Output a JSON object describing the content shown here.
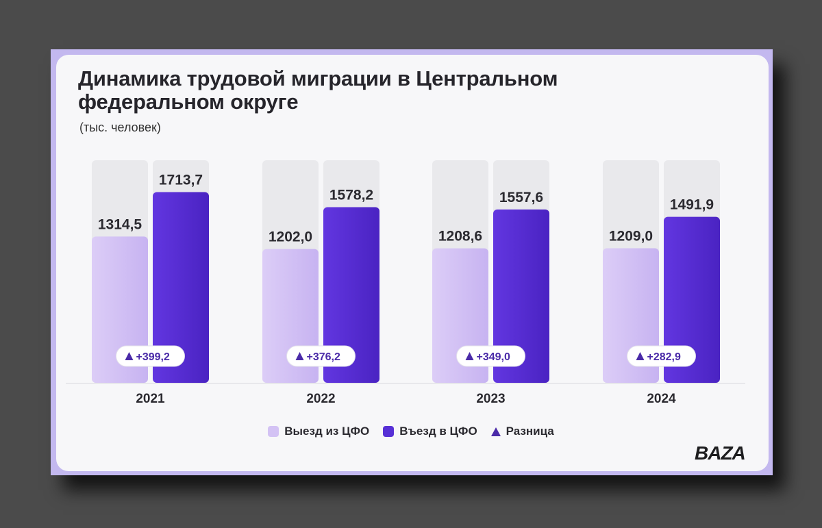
{
  "title": "Динамика трудовой миграции в Центральном федеральном округе",
  "subtitle": "(тыс. человек)",
  "logo": "BAZA",
  "colors": {
    "out": "#d3c2f4",
    "in": "#5730d6",
    "diff": "#4a2aa8",
    "track": "#e9e9ec"
  },
  "chart_data": {
    "type": "bar",
    "categories": [
      "2021",
      "2022",
      "2023",
      "2024"
    ],
    "series": [
      {
        "name": "Выезд из ЦФО",
        "values": [
          1314.5,
          1202.0,
          1208.6,
          1209.0
        ],
        "labels": [
          "1314,5",
          "1202,0",
          "1208,6",
          "1209,0"
        ]
      },
      {
        "name": "Въезд в ЦФО",
        "values": [
          1713.7,
          1578.2,
          1557.6,
          1491.9
        ],
        "labels": [
          "1713,7",
          "1578,2",
          "1557,6",
          "1491,9"
        ]
      }
    ],
    "differences": [
      399.2,
      376.2,
      349.0,
      282.9
    ],
    "difference_labels": [
      "+399,2",
      "+376,2",
      "+349,0",
      "+282,9"
    ],
    "legend": [
      "Выезд из ЦФО",
      "Въезд в ЦФО",
      "Разница"
    ],
    "ylim": [
      0,
      2000
    ],
    "legend_position": "bottom-center"
  }
}
